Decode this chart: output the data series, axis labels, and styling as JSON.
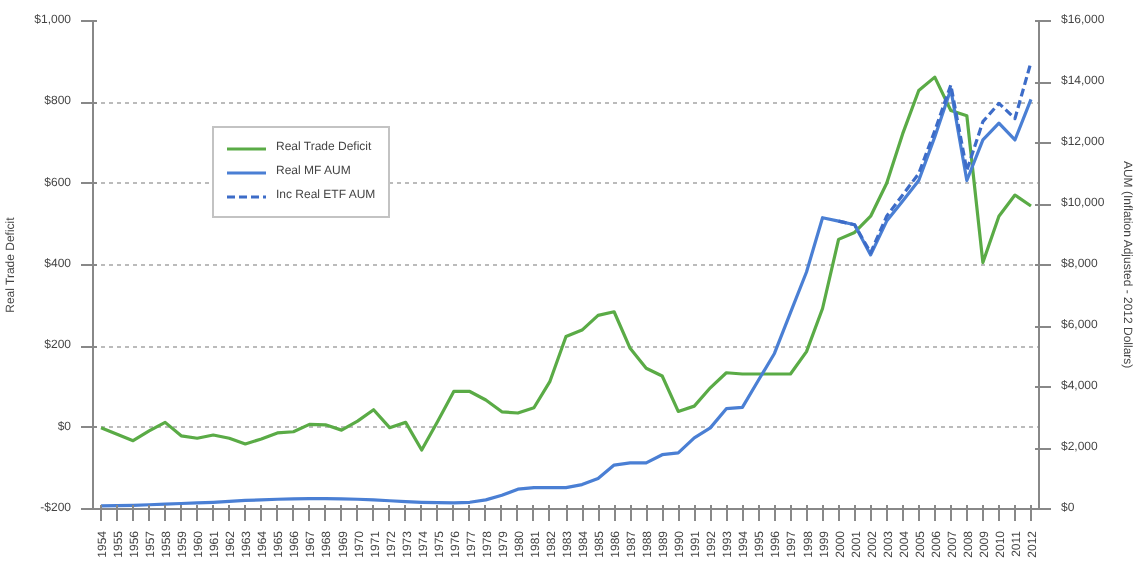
{
  "chart_data": {
    "type": "line",
    "ylabel": "Real Trade Deficit",
    "y2label": "AUM (Inflation Adjusted - 2012 Dollars)",
    "categories": [
      "1954",
      "1955",
      "1956",
      "1957",
      "1958",
      "1959",
      "1960",
      "1961",
      "1962",
      "1963",
      "1964",
      "1965",
      "1966",
      "1967",
      "1968",
      "1969",
      "1970",
      "1971",
      "1972",
      "1973",
      "1974",
      "1975",
      "1976",
      "1977",
      "1978",
      "1979",
      "1980",
      "1981",
      "1982",
      "1983",
      "1984",
      "1985",
      "1986",
      "1987",
      "1988",
      "1989",
      "1990",
      "1991",
      "1992",
      "1993",
      "1994",
      "1995",
      "1996",
      "1997",
      "1998",
      "1999",
      "2000",
      "2001",
      "2002",
      "2003",
      "2004",
      "2005",
      "2006",
      "2007",
      "2008",
      "2009",
      "2010",
      "2011",
      "2012"
    ],
    "series": [
      {
        "name": "Real Trade Deficit",
        "color": "#5aab46",
        "values": [
          0,
          -16,
          -32,
          -8,
          13,
          -20,
          -26,
          -18,
          -26,
          -40,
          -28,
          -13,
          -10,
          8,
          7,
          -6,
          16,
          44,
          0,
          13,
          -55,
          16,
          89,
          89,
          68,
          39,
          36,
          49,
          114,
          224,
          240,
          276,
          285,
          195,
          146,
          127,
          40,
          53,
          98,
          135,
          132,
          132,
          132,
          132,
          187,
          293,
          463,
          480,
          520,
          601,
          723,
          829,
          862,
          780,
          767,
          406,
          520,
          572,
          545
        ]
      },
      {
        "name": "Real MF AUM",
        "color": "#4a7fd4",
        "axis": "y2",
        "values": [
          100,
          110,
          120,
          140,
          160,
          180,
          200,
          220,
          250,
          280,
          300,
          320,
          330,
          340,
          340,
          330,
          320,
          300,
          270,
          240,
          220,
          210,
          200,
          220,
          300,
          450,
          650,
          700,
          700,
          700,
          800,
          1000,
          1440,
          1510,
          1510,
          1780,
          1840,
          2330,
          2660,
          3290,
          3330,
          4220,
          5100,
          6440,
          7770,
          9550,
          9440,
          9320,
          8330,
          9440,
          10100,
          10770,
          12200,
          13760,
          10770,
          12100,
          12650,
          12100,
          13430
        ]
      },
      {
        "name": "Inc Real ETF AUM",
        "color": "#3d6cc8",
        "axis": "y2",
        "line_style": "dashed",
        "values": [
          null,
          null,
          null,
          null,
          null,
          null,
          null,
          null,
          null,
          null,
          null,
          null,
          null,
          null,
          null,
          null,
          null,
          null,
          null,
          null,
          null,
          null,
          null,
          null,
          null,
          null,
          null,
          null,
          null,
          null,
          null,
          null,
          null,
          null,
          null,
          null,
          null,
          null,
          null,
          null,
          null,
          null,
          null,
          null,
          null,
          null,
          9440,
          9320,
          8400,
          9600,
          10300,
          11000,
          12400,
          13900,
          11100,
          12700,
          13300,
          12800,
          14650
        ]
      }
    ],
    "ylim": [
      -200,
      1000
    ],
    "yticks": [
      {
        "value": -200,
        "label": "-$200"
      },
      {
        "value": 0,
        "label": "$0"
      },
      {
        "value": 200,
        "label": "$200"
      },
      {
        "value": 400,
        "label": "$400"
      },
      {
        "value": 600,
        "label": "$600"
      },
      {
        "value": 800,
        "label": "$800"
      },
      {
        "value": 1000,
        "label": "$1,000"
      }
    ],
    "y2lim": [
      0,
      16000
    ],
    "y2ticks": [
      {
        "value": 0,
        "label": "$0"
      },
      {
        "value": 2000,
        "label": "$2,000"
      },
      {
        "value": 4000,
        "label": "$4,000"
      },
      {
        "value": 6000,
        "label": "$6,000"
      },
      {
        "value": 8000,
        "label": "$8,000"
      },
      {
        "value": 10000,
        "label": "$10,000"
      },
      {
        "value": 12000,
        "label": "$12,000"
      },
      {
        "value": 14000,
        "label": "$14,000"
      },
      {
        "value": 16000,
        "label": "$16,000"
      }
    ],
    "grid": "y",
    "legend": "top left",
    "line_style": "solid",
    "marker": "none"
  }
}
